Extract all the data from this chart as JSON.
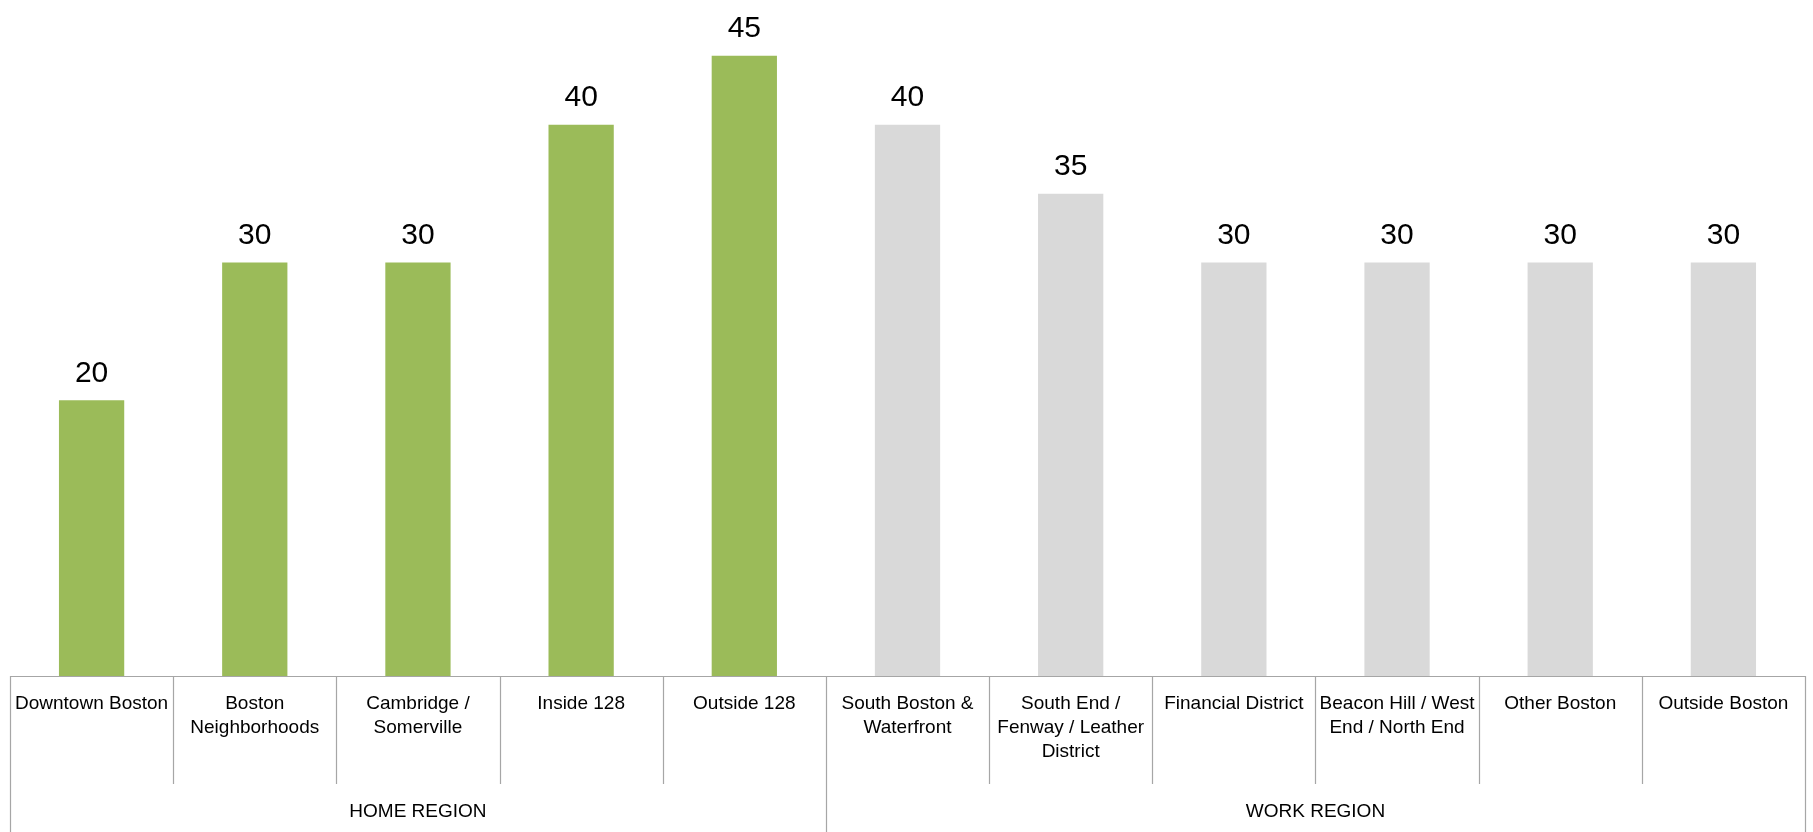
{
  "chart_data": {
    "type": "bar",
    "stacked": true,
    "data_labels": true,
    "legend": false,
    "categories": [
      "Downtown Boston",
      "Boston Neighborhoods",
      "Cambridge / Somerville",
      "Inside 128",
      "Outside 128",
      "South Boston & Waterfront",
      "South End / Fenway / Leather District",
      "Financial District",
      "Beacon Hill / West End / North End",
      "Other Boston",
      "Outside Boston"
    ],
    "series": [
      {
        "color": "#9bbb59",
        "values": [
          20,
          30,
          30,
          40,
          45,
          null,
          null,
          null,
          null,
          null,
          null
        ]
      },
      {
        "color": "#d9d9d9",
        "values": [
          null,
          null,
          null,
          null,
          null,
          40,
          35,
          30,
          30,
          30,
          30
        ]
      }
    ],
    "annotations": [
      "HOME REGION",
      "WORK REGION"
    ]
  }
}
